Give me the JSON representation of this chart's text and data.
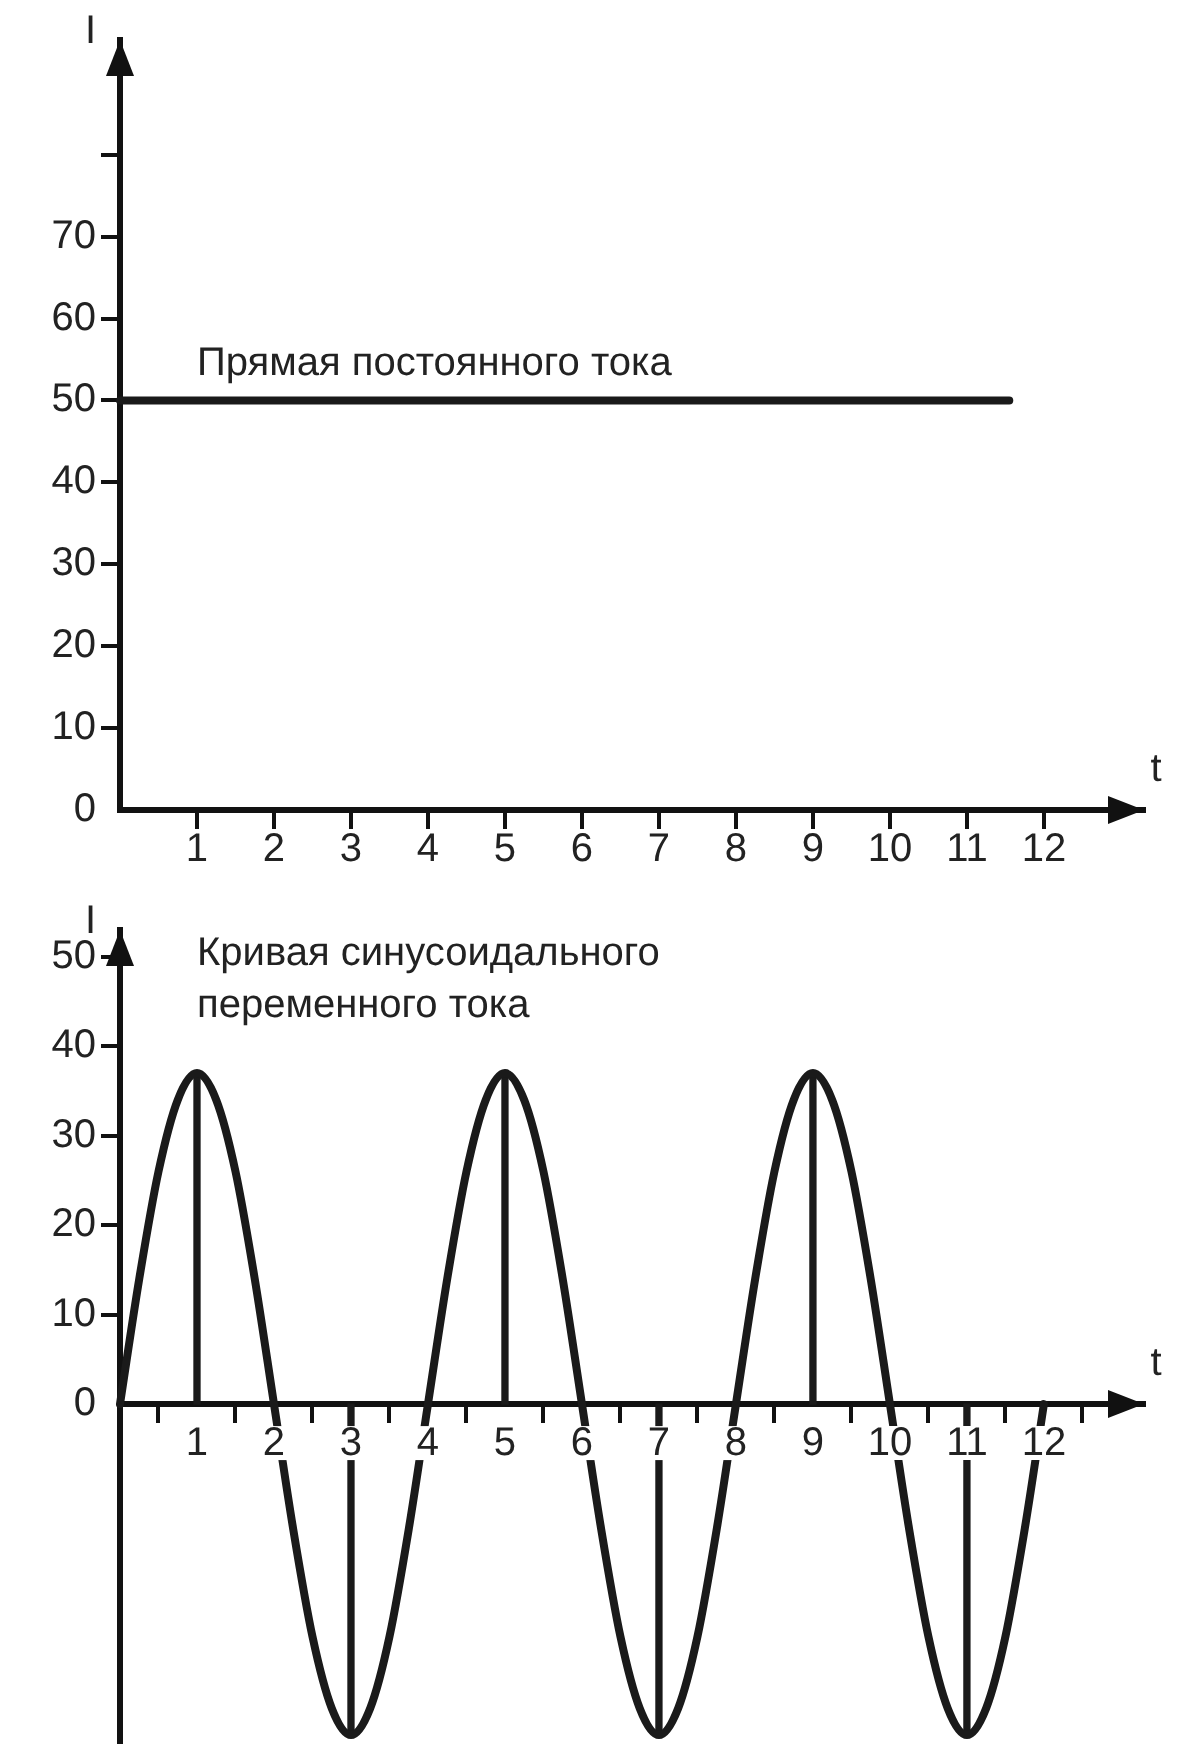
{
  "chart_data": [
    {
      "type": "line",
      "xlabel": "t",
      "ylabel": "I",
      "annotations": [
        {
          "text": "Прямая постоянного тока",
          "x": 1,
          "y": 50
        }
      ],
      "series": [
        {
          "color": "#1a1a1a",
          "x": [
            0,
            11.55
          ],
          "values": [
            50,
            50
          ]
        }
      ],
      "xlim": [
        0,
        13.3
      ],
      "ylim": [
        0,
        94
      ],
      "xticks": [
        1,
        2,
        3,
        4,
        5,
        6,
        7,
        8,
        9,
        10,
        11,
        12
      ],
      "yticks": [
        0,
        10,
        20,
        30,
        40,
        50,
        60,
        70,
        {
          "value": 80,
          "label": null
        }
      ],
      "grid": false,
      "legend": false,
      "marker": "none",
      "line_style": "solid"
    },
    {
      "type": "line",
      "xlabel": "t",
      "ylabel": "I",
      "annotations": [
        "Кривая синусоидального переменного тока"
      ],
      "series": [
        {
          "color": "#1a1a1a",
          "x": [
            0,
            0.25,
            0.5,
            0.75,
            1,
            1.25,
            1.5,
            1.75,
            2,
            2.25,
            2.5,
            2.75,
            3,
            3.25,
            3.5,
            3.75,
            4,
            4.25,
            4.5,
            4.75,
            5,
            5.25,
            5.5,
            5.75,
            6,
            6.25,
            6.5,
            6.75,
            7,
            7.25,
            7.5,
            7.75,
            8,
            8.25,
            8.5,
            8.75,
            9,
            9.25,
            9.5,
            9.75,
            10,
            10.25,
            10.5,
            10.75,
            11,
            11.25,
            11.5,
            11.75,
            12
          ],
          "values": [
            0,
            14,
            26,
            34,
            37,
            34,
            26,
            14,
            0,
            -14,
            -26,
            -34,
            -37,
            -34,
            -26,
            -14,
            0,
            14,
            26,
            34,
            37,
            34,
            26,
            14,
            0,
            -14,
            -26,
            -34,
            -37,
            -34,
            -26,
            -14,
            0,
            14,
            26,
            34,
            37,
            34,
            26,
            14,
            0,
            -14,
            -26,
            -34,
            -37,
            -34,
            -26,
            -14,
            0
          ]
        },
        {
          "type": "bar",
          "color": "#1a1a1a",
          "x": [
            1,
            3,
            5,
            7,
            9,
            11
          ],
          "values": [
            37,
            -37,
            37,
            -37,
            37,
            -37
          ]
        }
      ],
      "xlim": [
        0,
        13.3
      ],
      "ylim": [
        -38,
        53
      ],
      "xticks": [
        1,
        2,
        3,
        4,
        5,
        6,
        7,
        8,
        9,
        10,
        11,
        12
      ],
      "yticks": [
        0,
        10,
        20,
        30,
        40,
        50
      ],
      "grid": false,
      "legend": false,
      "marker": "none",
      "line_style": "solid"
    }
  ]
}
